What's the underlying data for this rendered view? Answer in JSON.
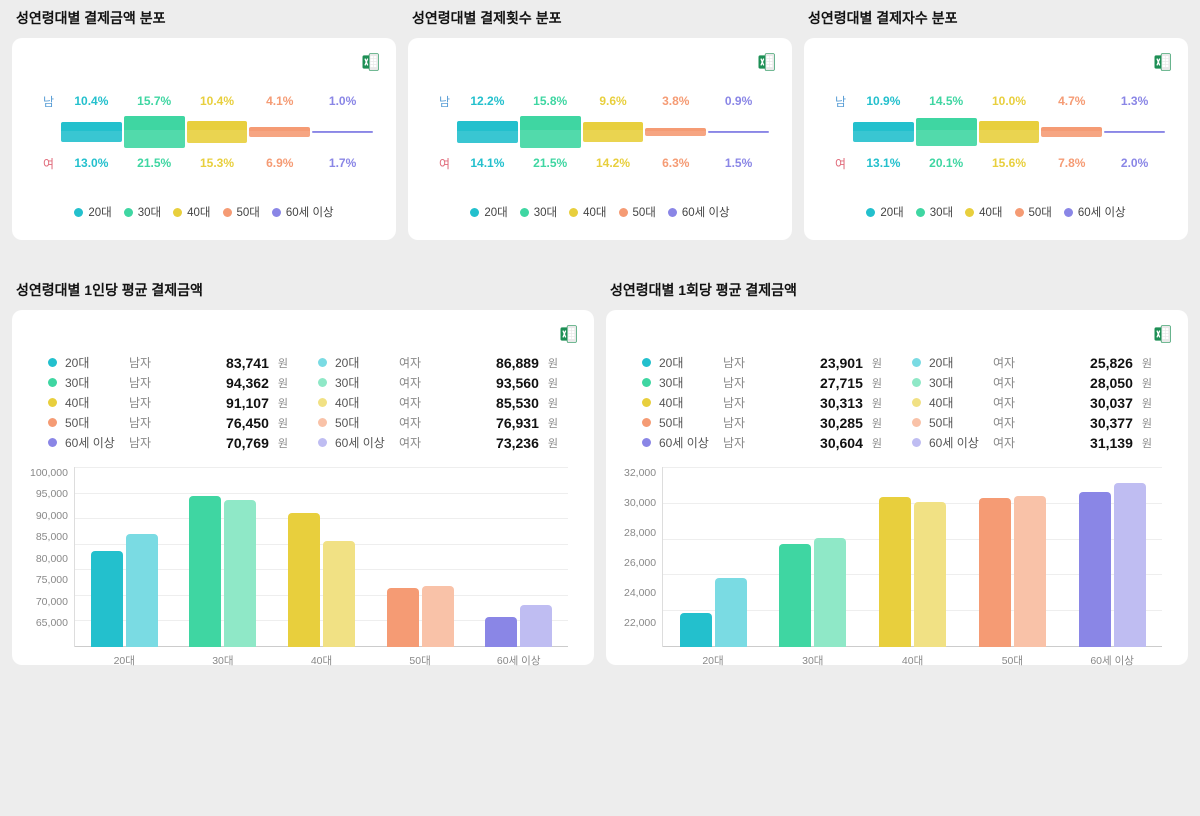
{
  "colors": {
    "ages": {
      "20s": "#23c0cd",
      "30s": "#3fd6a2",
      "40s": "#e8cf3d",
      "50s": "#f59b74",
      "60p": "#8a86e6"
    },
    "ages_light": {
      "20s": "#7adbe3",
      "30s": "#8fe8c7",
      "40s": "#f1e184",
      "50s": "#f9c2a8",
      "60p": "#bfbdf2"
    },
    "male_label": "#5b9fd6",
    "female_label": "#e06a7a",
    "background": "#ededed",
    "card_bg": "#ffffff",
    "grid": "#eeeeee"
  },
  "age_labels": [
    "20대",
    "30대",
    "40대",
    "50대",
    "60세 이상"
  ],
  "sex_labels": {
    "male": "남",
    "female": "여",
    "male_full": "남자",
    "female_full": "여자"
  },
  "currency_unit": "원",
  "distribution_cards": [
    {
      "title": "성연령대별 결제금액 분포",
      "male": [
        "10.4%",
        "15.7%",
        "10.4%",
        "4.1%",
        "1.0%"
      ],
      "female": [
        "13.0%",
        "21.5%",
        "15.3%",
        "6.9%",
        "1.7%"
      ],
      "male_heights": [
        10.4,
        15.7,
        10.4,
        4.1,
        1.0
      ],
      "female_heights": [
        13.0,
        21.5,
        15.3,
        6.9,
        1.7
      ]
    },
    {
      "title": "성연령대별 결제횟수 분포",
      "male": [
        "12.2%",
        "15.8%",
        "9.6%",
        "3.8%",
        "0.9%"
      ],
      "female": [
        "14.1%",
        "21.5%",
        "14.2%",
        "6.3%",
        "1.5%"
      ],
      "male_heights": [
        12.2,
        15.8,
        9.6,
        3.8,
        0.9
      ],
      "female_heights": [
        14.1,
        21.5,
        14.2,
        6.3,
        1.5
      ]
    },
    {
      "title": "성연령대별 결제자수 분포",
      "male": [
        "10.9%",
        "14.5%",
        "10.0%",
        "4.7%",
        "1.3%"
      ],
      "female": [
        "13.1%",
        "20.1%",
        "15.6%",
        "7.8%",
        "2.0%"
      ],
      "male_heights": [
        10.9,
        14.5,
        10.0,
        4.7,
        1.3
      ],
      "female_heights": [
        13.1,
        20.1,
        15.6,
        7.8,
        2.0
      ]
    }
  ],
  "bar_cards": [
    {
      "title": "성연령대별 1인당 평균 결제금액",
      "y_ticks": [
        "100,000",
        "95,000",
        "90,000",
        "85,000",
        "80,000",
        "75,000",
        "70,000",
        "65,000"
      ],
      "y_min": 65000,
      "y_max": 100000,
      "male_values": [
        83741,
        94362,
        91107,
        76450,
        70769
      ],
      "female_values": [
        86889,
        93560,
        85530,
        76931,
        73236
      ],
      "male_display": [
        "83,741",
        "94,362",
        "91,107",
        "76,450",
        "70,769"
      ],
      "female_display": [
        "86,889",
        "93,560",
        "85,530",
        "76,931",
        "73,236"
      ]
    },
    {
      "title": "성연령대별 1회당 평균 결제금액",
      "y_ticks": [
        "32,000",
        "30,000",
        "28,000",
        "26,000",
        "24,000",
        "22,000"
      ],
      "y_min": 22000,
      "y_max": 32000,
      "male_values": [
        23901,
        27715,
        30313,
        30285,
        30604
      ],
      "female_values": [
        25826,
        28050,
        30037,
        30377,
        31139
      ],
      "male_display": [
        "23,901",
        "27,715",
        "30,313",
        "30,285",
        "30,604"
      ],
      "female_display": [
        "25,826",
        "28,050",
        "30,037",
        "30,377",
        "31,139"
      ]
    }
  ]
}
